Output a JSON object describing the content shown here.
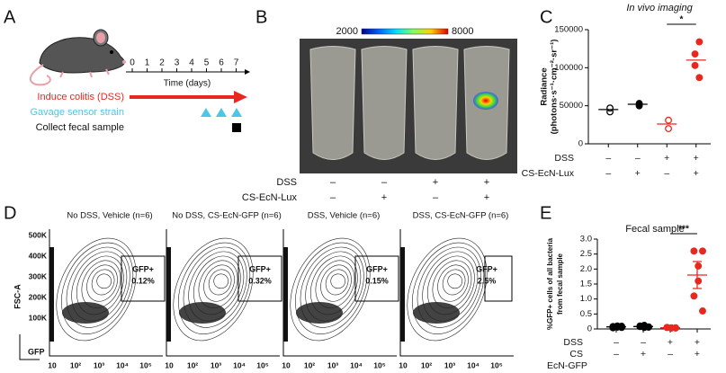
{
  "panel_a": {
    "letter": "A",
    "timeline_ticks": [
      "0",
      "1",
      "2",
      "3",
      "4",
      "5",
      "6",
      "7"
    ],
    "time_label": "Time (days)",
    "steps": [
      "Induce colitis (DSS)",
      "Gavage sensor strain",
      "Collect fecal sample"
    ]
  },
  "panel_b": {
    "letter": "B",
    "colorbar_labels": [
      "2000",
      "8000"
    ],
    "rows": [
      {
        "label": "DSS",
        "signs": [
          "–",
          "–",
          "+",
          "+"
        ]
      },
      {
        "label": "CS-EcN-Lux",
        "signs": [
          "–",
          "+",
          "–",
          "+"
        ]
      }
    ]
  },
  "panel_d": {
    "letter": "D",
    "y_label": "FSC-A",
    "x_label": "GFP",
    "yticks": [
      "500K",
      "400K",
      "300K",
      "200K",
      "100K"
    ],
    "xticks": [
      "10",
      "10²",
      "10³",
      "10⁴",
      "10⁵"
    ],
    "plots": [
      {
        "title": "No DSS, Vehicle (n=6)",
        "gate": "GFP+",
        "percent": "0.12%"
      },
      {
        "title": "No DSS, CS-EcN-GFP (n=6)",
        "gate": "GFP+",
        "percent": "0.32%"
      },
      {
        "title": "DSS, Vehicle (n=6)",
        "gate": "GFP+",
        "percent": "0.15%"
      },
      {
        "title": "DSS, CS-EcN-GFP (n=6)",
        "gate": "GFP+",
        "percent": "2.5%"
      }
    ]
  },
  "chart_data": [
    {
      "type": "dot",
      "letter": "C",
      "title": "In vivo imaging",
      "y_label": [
        "Radiance",
        "(photons·s⁻¹·cm⁻²·sr⁻¹)"
      ],
      "ylim": [
        0,
        150000
      ],
      "yticks": [
        0,
        50000,
        100000,
        150000
      ],
      "significance": "*",
      "groups": [
        {
          "color": "#000000",
          "filled": false,
          "values": [
            42000,
            47000
          ],
          "mean": 45000
        },
        {
          "color": "#000000",
          "filled": true,
          "values": [
            50000,
            53000
          ],
          "mean": 52000
        },
        {
          "color": "#e8281e",
          "filled": false,
          "values": [
            20000,
            31000
          ],
          "mean": 26000
        },
        {
          "color": "#e8281e",
          "filled": true,
          "values": [
            134000,
            118000,
            103000,
            87000
          ],
          "mean": 110000
        }
      ],
      "rows": [
        {
          "label": "DSS",
          "signs": [
            "–",
            "–",
            "+",
            "+"
          ]
        },
        {
          "label": "CS-EcN-Lux",
          "signs": [
            "–",
            "+",
            "–",
            "+"
          ]
        }
      ]
    },
    {
      "type": "dot",
      "letter": "E",
      "title": "Fecal sample",
      "y_label": [
        "%GFP+ cells of all bacteria",
        "from fecal sample"
      ],
      "ylim": [
        0,
        3
      ],
      "yticks": [
        0,
        0.5,
        {
          "value": 1,
          "label": "1.0"
        },
        1.5,
        {
          "value": 2,
          "label": "2.0"
        },
        2.5,
        {
          "value": 3,
          "label": "3.0"
        }
      ],
      "significance": "***",
      "groups": [
        {
          "color": "#000000",
          "filled": true,
          "values": [
            0.05,
            0.08,
            0.1,
            0.06,
            0.04,
            0.09
          ],
          "mean": 0.07,
          "error": 0.01
        },
        {
          "color": "#000000",
          "filled": true,
          "values": [
            0.06,
            0.1,
            0.12,
            0.05,
            0.08,
            0.07
          ],
          "mean": 0.08,
          "error": 0.01
        },
        {
          "color": "#e8281e",
          "filled": true,
          "values": [
            0.03,
            0.05,
            0.04,
            0.03,
            0.05,
            0.04
          ],
          "mean": 0.04,
          "error": 0.005
        },
        {
          "color": "#e8281e",
          "filled": true,
          "values": [
            2.6,
            2.6,
            2.1,
            1.6,
            1.1,
            0.6
          ],
          "mean": 1.8,
          "error": 0.45
        }
      ],
      "rows": [
        {
          "label": "DSS",
          "signs": [
            "–",
            "–",
            "+",
            "+"
          ]
        },
        {
          "label": "CS",
          "signs": [
            "–",
            "+",
            "–",
            "+"
          ]
        }
      ],
      "row_note": "EcN-GFP"
    }
  ]
}
